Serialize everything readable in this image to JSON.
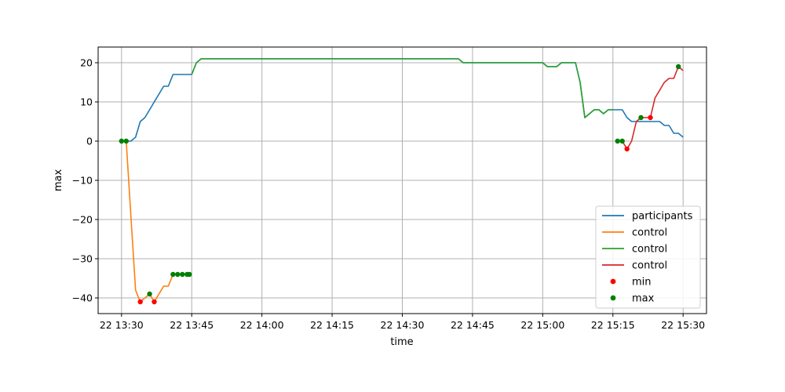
{
  "chart_data": {
    "type": "line",
    "title": "",
    "xlabel": "time",
    "ylabel": "max",
    "x_unit": "minutes",
    "xlim": [
      "13:25",
      "15:35"
    ],
    "ylim": [
      -44,
      24
    ],
    "grid": true,
    "legend": "lower-right",
    "x_ticks": [
      {
        "t": "13:30",
        "label": "22 13:30"
      },
      {
        "t": "13:45",
        "label": "22 13:45"
      },
      {
        "t": "14:00",
        "label": "22 14:00"
      },
      {
        "t": "14:15",
        "label": "22 14:15"
      },
      {
        "t": "14:30",
        "label": "22 14:30"
      },
      {
        "t": "14:45",
        "label": "22 14:45"
      },
      {
        "t": "15:00",
        "label": "22 15:00"
      },
      {
        "t": "15:15",
        "label": "22 15:15"
      },
      {
        "t": "15:30",
        "label": "22 15:30"
      }
    ],
    "y_ticks": [
      {
        "v": 20,
        "label": "20"
      },
      {
        "v": 10,
        "label": "10"
      },
      {
        "v": 0,
        "label": "0"
      },
      {
        "v": -10,
        "label": "−10"
      },
      {
        "v": -20,
        "label": "−20"
      },
      {
        "v": -30,
        "label": "−30"
      },
      {
        "v": -40,
        "label": "−40"
      }
    ],
    "series": [
      {
        "name": "participants",
        "color": "#1f77b4",
        "points": [
          [
            "13:30",
            0
          ],
          [
            "13:31",
            0
          ],
          [
            "13:32",
            0
          ],
          [
            "13:33",
            1
          ],
          [
            "13:34",
            5
          ],
          [
            "13:35",
            6
          ],
          [
            "13:36",
            8
          ],
          [
            "13:37",
            10
          ],
          [
            "13:38",
            12
          ],
          [
            "13:39",
            14
          ],
          [
            "13:40",
            14
          ],
          [
            "13:41",
            17
          ],
          [
            "13:42",
            17
          ],
          [
            "13:43",
            17
          ],
          [
            "13:44",
            17
          ],
          [
            "13:45",
            17
          ],
          [
            "13:46",
            20
          ],
          [
            "13:47",
            21
          ],
          [
            "14:00",
            21
          ],
          [
            "14:30",
            21
          ],
          [
            "14:42",
            21
          ],
          [
            "14:43",
            20
          ],
          [
            "15:00",
            20
          ],
          [
            "15:01",
            19
          ],
          [
            "15:03",
            19
          ],
          [
            "15:04",
            20
          ],
          [
            "15:07",
            20
          ],
          [
            "15:08",
            15
          ],
          [
            "15:09",
            6
          ],
          [
            "15:10",
            7
          ],
          [
            "15:11",
            8
          ],
          [
            "15:12",
            8
          ],
          [
            "15:13",
            7
          ],
          [
            "15:14",
            8
          ],
          [
            "15:16",
            8
          ],
          [
            "15:17",
            8
          ],
          [
            "15:18",
            6
          ],
          [
            "15:19",
            5
          ],
          [
            "15:23",
            5
          ],
          [
            "15:24",
            5
          ],
          [
            "15:25",
            5
          ],
          [
            "15:26",
            4
          ],
          [
            "15:27",
            4
          ],
          [
            "15:28",
            2
          ],
          [
            "15:29",
            2
          ],
          [
            "15:30",
            1
          ]
        ]
      },
      {
        "name": "control",
        "color": "#ff7f0e",
        "points": [
          [
            "13:30",
            0
          ],
          [
            "13:31",
            0
          ],
          [
            "13:32",
            -19
          ],
          [
            "13:33",
            -38
          ],
          [
            "13:34",
            -41
          ],
          [
            "13:35",
            -40
          ],
          [
            "13:36",
            -39
          ],
          [
            "13:37",
            -41
          ],
          [
            "13:38",
            -39
          ],
          [
            "13:39",
            -37
          ],
          [
            "13:40",
            -37
          ],
          [
            "13:41",
            -34
          ],
          [
            "13:42",
            -34
          ],
          [
            "13:43",
            -34
          ],
          [
            "13:44",
            -34
          ]
        ]
      },
      {
        "name": "control",
        "color": "#2ca02c",
        "points": [
          [
            "13:45",
            17
          ],
          [
            "13:46",
            20
          ],
          [
            "13:47",
            21
          ],
          [
            "14:00",
            21
          ],
          [
            "14:30",
            21
          ],
          [
            "14:42",
            21
          ],
          [
            "14:43",
            20
          ],
          [
            "15:00",
            20
          ],
          [
            "15:01",
            19
          ],
          [
            "15:03",
            19
          ],
          [
            "15:04",
            20
          ],
          [
            "15:07",
            20
          ],
          [
            "15:08",
            15
          ],
          [
            "15:09",
            6
          ],
          [
            "15:10",
            7
          ],
          [
            "15:11",
            8
          ],
          [
            "15:12",
            8
          ],
          [
            "15:13",
            7
          ],
          [
            "15:14",
            8
          ],
          [
            "15:15",
            8
          ]
        ]
      },
      {
        "name": "control",
        "color": "#d62728",
        "points": [
          [
            "15:16",
            0
          ],
          [
            "15:17",
            0
          ],
          [
            "15:18",
            -2
          ],
          [
            "15:19",
            0
          ],
          [
            "15:20",
            5
          ],
          [
            "15:21",
            6
          ],
          [
            "15:22",
            6
          ],
          [
            "15:23",
            6
          ],
          [
            "15:24",
            11
          ],
          [
            "15:25",
            13
          ],
          [
            "15:26",
            15
          ],
          [
            "15:27",
            16
          ],
          [
            "15:28",
            16
          ],
          [
            "15:29",
            19
          ],
          [
            "15:30",
            18
          ]
        ]
      }
    ],
    "scatter_series": [
      {
        "name": "min",
        "color": "#ff0000",
        "points": [
          [
            "13:34",
            -41
          ],
          [
            "13:37",
            -41
          ],
          [
            "15:18",
            -2
          ],
          [
            "15:23",
            6
          ]
        ]
      },
      {
        "name": "max",
        "color": "#008000",
        "points": [
          [
            "13:30",
            0
          ],
          [
            "13:31",
            0
          ],
          [
            "13:36",
            -39
          ],
          [
            "13:41",
            -34
          ],
          [
            "13:42",
            -34
          ],
          [
            "13:43",
            -34
          ],
          [
            "13:44",
            -34
          ],
          [
            "13:44.5",
            -34
          ],
          [
            "15:16",
            0
          ],
          [
            "15:17",
            0
          ],
          [
            "15:21",
            6
          ],
          [
            "15:29",
            19
          ]
        ]
      }
    ]
  }
}
